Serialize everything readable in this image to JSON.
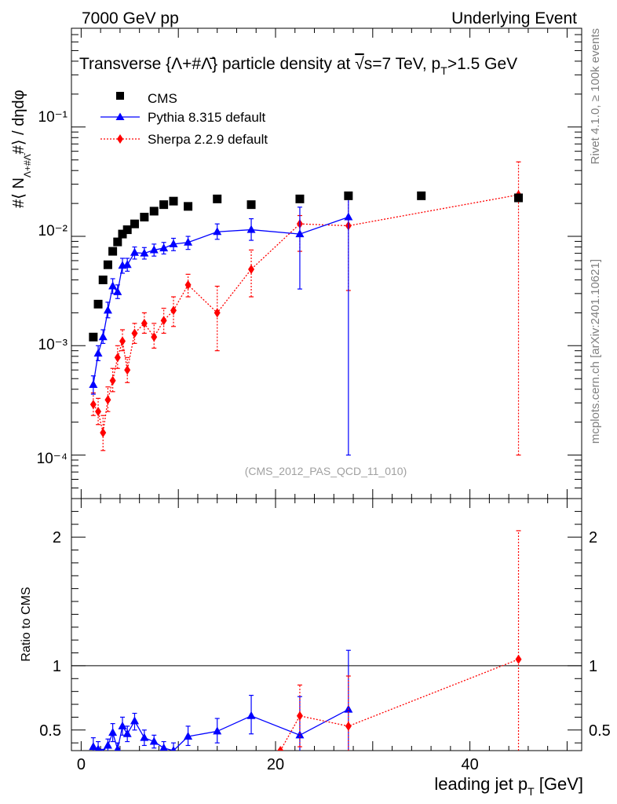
{
  "header": {
    "left_label": "7000 GeV pp",
    "right_label": "Underlying Event"
  },
  "side_labels": {
    "rivet": "Rivet 4.1.0, ≥ 100k events",
    "mcplots": "mcplots.cern.ch [arXiv:2401.10621]"
  },
  "chart_data": [
    {
      "type": "scatter",
      "panel": "main",
      "title": "Transverse {Λ+#Λ̄} particle density at √s=7 TeV, p_T>1.5 GeV",
      "title_parts": {
        "main": "Transverse {Λ+#Λ̄} particle density at ",
        "sqrt": "√",
        "s_eq": "s=7 TeV, p",
        "sub": "T",
        "tail": ">1.5 GeV"
      },
      "ylabel": "#⟨ N_{Λ+#Λ̄} #⟩ / dηdφ",
      "ylabel_parts": {
        "pre": "#⟨ N",
        "sub": "Λ+#Λ̄",
        "post": "#⟩ / dηdφ"
      },
      "yscale": "log",
      "ylim": [
        4e-05,
        0.8
      ],
      "xlim": [
        -1,
        51.5
      ],
      "y_tick_labels": [
        "10⁻⁴",
        "10⁻³",
        "10⁻²",
        "10⁻¹"
      ],
      "y_tick_values": [
        0.0001,
        0.001,
        0.01,
        0.1
      ],
      "watermark": "(CMS_2012_PAS_QCD_11_010)",
      "legend_position": "top-left",
      "series": [
        {
          "name": "CMS",
          "color": "#000000",
          "marker": "square",
          "x": [
            1.25,
            1.75,
            2.25,
            2.75,
            3.25,
            3.75,
            4.25,
            4.75,
            5.5,
            6.5,
            7.5,
            8.5,
            9.5,
            11,
            14,
            17.5,
            22.5,
            27.5,
            35,
            45
          ],
          "y": [
            0.0012,
            0.0024,
            0.004,
            0.0055,
            0.0073,
            0.0089,
            0.0105,
            0.0115,
            0.013,
            0.015,
            0.017,
            0.0195,
            0.021,
            0.0188,
            0.022,
            0.0195,
            0.022,
            0.0235,
            0.0235,
            0.0225
          ]
        },
        {
          "name": "Pythia 8.315 default",
          "color": "#0000ff",
          "marker": "triangle",
          "line": "solid",
          "x": [
            1.25,
            1.75,
            2.25,
            2.75,
            3.25,
            3.75,
            4.25,
            4.75,
            5.5,
            6.5,
            7.5,
            8.5,
            9.5,
            11,
            14,
            17.5,
            22.5,
            27.5
          ],
          "y": [
            0.00044,
            0.00085,
            0.0012,
            0.0021,
            0.0035,
            0.0031,
            0.0054,
            0.0055,
            0.0071,
            0.007,
            0.0075,
            0.0078,
            0.0085,
            0.0088,
            0.011,
            0.0115,
            0.0105,
            0.015
          ],
          "yerr_low": [
            0.00036,
            0.00073,
            0.00105,
            0.0018,
            0.003,
            0.0027,
            0.0046,
            0.0048,
            0.0062,
            0.0062,
            0.0066,
            0.0069,
            0.0074,
            0.0076,
            0.0094,
            0.0092,
            0.0033,
            0.0001
          ],
          "yerr_high": [
            0.00053,
            0.001,
            0.0014,
            0.0025,
            0.0041,
            0.0036,
            0.0063,
            0.0063,
            0.008,
            0.0079,
            0.0085,
            0.0088,
            0.0096,
            0.01,
            0.013,
            0.0145,
            0.0185,
            0.0245
          ]
        },
        {
          "name": "Sherpa 2.2.9 default",
          "color": "#ff0000",
          "marker": "diamond",
          "line": "dotted",
          "x": [
            1.25,
            1.75,
            2.25,
            2.75,
            3.25,
            3.75,
            4.25,
            4.75,
            5.5,
            6.5,
            7.5,
            8.5,
            9.5,
            11,
            14,
            17.5,
            22.5,
            27.5,
            45
          ],
          "y": [
            0.00029,
            0.00025,
            0.00016,
            0.00032,
            0.00048,
            0.00078,
            0.0011,
            0.0006,
            0.0013,
            0.0016,
            0.0012,
            0.0017,
            0.0021,
            0.0036,
            0.002,
            0.005,
            0.013,
            0.0125,
            0.024
          ],
          "yerr_low": [
            0.00023,
            0.00019,
            0.00011,
            0.00025,
            0.00038,
            0.00062,
            0.0009,
            0.00046,
            0.00105,
            0.0013,
            0.00095,
            0.0013,
            0.0015,
            0.0028,
            0.0009,
            0.0028,
            0.0073,
            0.0032,
            0.0001
          ],
          "yerr_high": [
            0.00037,
            0.00033,
            0.00023,
            0.00042,
            0.00062,
            0.001,
            0.0014,
            0.00078,
            0.0016,
            0.002,
            0.0016,
            0.0022,
            0.0028,
            0.0045,
            0.0035,
            0.0075,
            0.0155,
            0.0235,
            0.048
          ]
        }
      ]
    },
    {
      "type": "scatter",
      "panel": "ratio",
      "xlabel": "leading jet p_T [GeV]",
      "xlabel_parts": {
        "main": "leading jet p",
        "sub": "T",
        "tail": " [GeV]"
      },
      "ylabel": "Ratio to CMS",
      "ylim": [
        0.34,
        2.3
      ],
      "xlim": [
        -1,
        51.5
      ],
      "x_tick_values": [
        0,
        20,
        40
      ],
      "x_tick_labels": [
        "0",
        "20",
        "40"
      ],
      "y_tick_values": [
        0.5,
        1,
        2
      ],
      "y_tick_labels": [
        "0.5",
        "1",
        "2"
      ],
      "reference_line": 1,
      "series": [
        {
          "name": "Pythia 8.315 default",
          "color": "#0000ff",
          "marker": "triangle",
          "line": "solid",
          "x": [
            1.25,
            1.75,
            2.25,
            2.75,
            3.25,
            3.75,
            4.25,
            4.75,
            5.5,
            6.5,
            7.5,
            8.5,
            9.5,
            11,
            14,
            17.5,
            22.5,
            27.5
          ],
          "y": [
            0.37,
            0.35,
            0.3,
            0.38,
            0.48,
            0.35,
            0.53,
            0.47,
            0.57,
            0.44,
            0.41,
            0.36,
            0.34,
            0.45,
            0.49,
            0.61,
            0.46,
            0.66
          ],
          "yerr_low": [
            0.3,
            0.3,
            0.26,
            0.33,
            0.41,
            0.3,
            0.46,
            0.41,
            0.5,
            0.38,
            0.36,
            0.31,
            0.29,
            0.38,
            0.4,
            0.47,
            0.17,
            0.2
          ],
          "yerr_high": [
            0.44,
            0.41,
            0.35,
            0.43,
            0.55,
            0.4,
            0.6,
            0.53,
            0.63,
            0.5,
            0.46,
            0.41,
            0.4,
            0.53,
            0.59,
            0.77,
            0.76,
            1.12
          ]
        },
        {
          "name": "Sherpa 2.2.9 default",
          "color": "#ff0000",
          "marker": "diamond",
          "line": "dotted",
          "x": [
            20.5,
            22.5,
            27.5,
            45
          ],
          "y": [
            0.34,
            0.61,
            0.53,
            1.05
          ],
          "yerr_low": [
            0.34,
            0.37,
            0.2,
            0.3
          ],
          "yerr_high": [
            0.34,
            0.85,
            0.92,
            2.05
          ]
        }
      ]
    }
  ]
}
